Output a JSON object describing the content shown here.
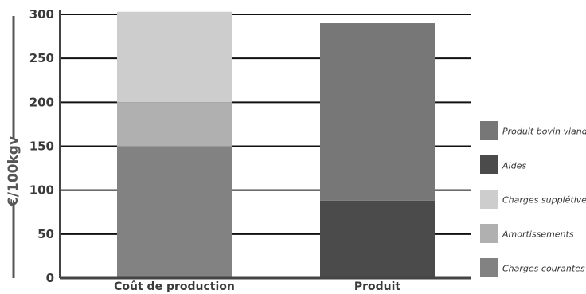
{
  "chart_data": {
    "type": "bar",
    "stacked": true,
    "categories": [
      "Coût de production",
      "Produit"
    ],
    "series": [
      {
        "name": "Charges courantes",
        "values": [
          150,
          0
        ],
        "color": "#828282"
      },
      {
        "name": "Amortissements",
        "values": [
          50,
          0
        ],
        "color": "#b0b0b0"
      },
      {
        "name": "Charges supplétives",
        "values": [
          103,
          0
        ],
        "color": "#cdcdcd"
      },
      {
        "name": "Aides",
        "values": [
          0,
          88
        ],
        "color": "#4b4b4b"
      },
      {
        "name": "Produit bovin viande",
        "values": [
          0,
          202
        ],
        "color": "#777777"
      }
    ],
    "title": "",
    "xlabel": "",
    "ylabel": "€/100kgv",
    "ylim": [
      0,
      300
    ],
    "yticks": [
      0,
      50,
      100,
      150,
      200,
      250,
      300
    ],
    "grid": true,
    "legend_position": "right",
    "legend_order": [
      "Produit bovin viande",
      "Aides",
      "Charges supplétives",
      "Amortissements",
      "Charges courantes"
    ]
  }
}
